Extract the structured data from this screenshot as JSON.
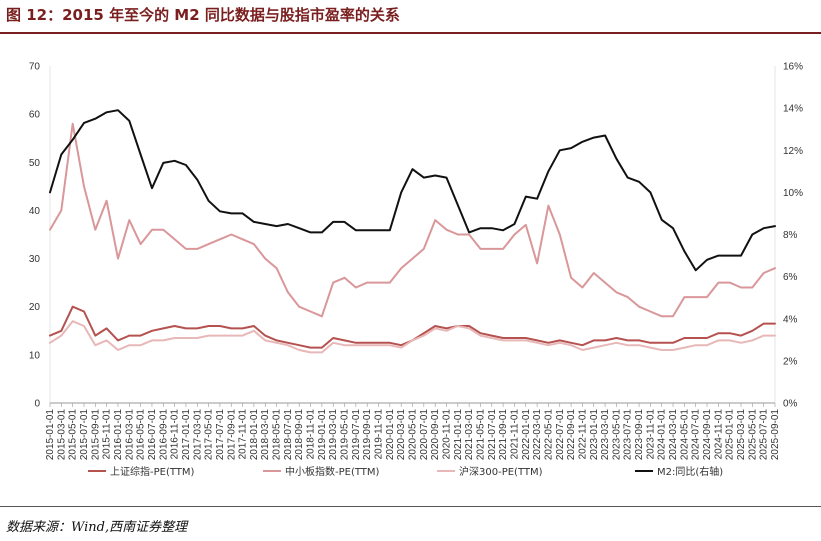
{
  "figure": {
    "title": "图 12：2015 年至今的 M2 同比数据与股指市盈率的关系",
    "source": "数据来源：Wind,西南证券整理"
  },
  "chart_data": {
    "type": "line",
    "x": [
      "2015-01-01",
      "2015-03-01",
      "2015-05-01",
      "2015-07-01",
      "2015-09-01",
      "2015-11-01",
      "2016-01-01",
      "2016-03-01",
      "2016-05-01",
      "2016-07-01",
      "2016-09-01",
      "2016-11-01",
      "2017-01-01",
      "2017-03-01",
      "2017-05-01",
      "2017-07-01",
      "2017-09-01",
      "2017-11-01",
      "2018-01-01",
      "2018-03-01",
      "2018-05-01",
      "2018-07-01",
      "2018-09-01",
      "2018-11-01",
      "2019-01-01",
      "2019-03-01",
      "2019-05-01",
      "2019-07-01",
      "2019-09-01",
      "2019-11-01",
      "2020-01-01",
      "2020-03-01",
      "2020-05-01",
      "2020-07-01",
      "2020-09-01",
      "2020-11-01",
      "2021-01-01",
      "2021-03-01",
      "2021-05-01",
      "2021-07-01",
      "2021-09-01",
      "2021-11-01",
      "2022-01-01",
      "2022-03-01",
      "2022-05-01",
      "2022-07-01",
      "2022-09-01",
      "2022-11-01",
      "2023-01-01",
      "2023-03-01",
      "2023-05-01",
      "2023-07-01",
      "2023-09-01",
      "2023-11-01",
      "2024-01-01",
      "2024-03-01",
      "2024-05-01",
      "2024-07-01",
      "2024-09-01",
      "2024-11-01",
      "2025-01-01",
      "2025-03-01",
      "2025-05-01",
      "2025-07-01",
      "2025-09-01"
    ],
    "y_left_lim": [
      0,
      70
    ],
    "y_left_ticks": [
      0,
      10,
      20,
      30,
      40,
      50,
      60,
      70
    ],
    "y_right_lim": [
      0,
      16
    ],
    "y_right_ticks": [
      "0%",
      "2%",
      "4%",
      "6%",
      "8%",
      "10%",
      "12%",
      "14%",
      "16%"
    ],
    "series": [
      {
        "name": "上证综指-PE(TTM)",
        "axis": "left",
        "color": "#b5514f",
        "values": [
          14,
          15,
          20,
          19,
          14,
          15.5,
          13,
          14,
          14,
          15,
          15.5,
          16,
          15.5,
          15.5,
          16,
          16,
          15.5,
          15.5,
          16,
          14,
          13,
          12.5,
          12,
          11.5,
          11.5,
          13.5,
          13,
          12.5,
          12.5,
          12.5,
          12.5,
          12,
          13,
          14.5,
          16,
          15.5,
          16,
          16,
          14.5,
          14,
          13.5,
          13.5,
          13.5,
          13,
          12.5,
          13,
          12.5,
          12,
          13,
          13,
          13.5,
          13,
          13,
          12.5,
          12.5,
          12.5,
          13.5,
          13.5,
          13.5,
          14.5,
          14.5,
          14,
          15,
          16.5,
          16.5
        ]
      },
      {
        "name": "中小板指数-PE(TTM)",
        "axis": "left",
        "color": "#d9979a",
        "values": [
          36,
          40,
          58,
          45,
          36,
          42,
          30,
          38,
          33,
          36,
          36,
          34,
          32,
          32,
          33,
          34,
          35,
          34,
          33,
          30,
          28,
          23,
          20,
          19,
          18,
          25,
          26,
          24,
          25,
          25,
          25,
          28,
          30,
          32,
          38,
          36,
          35,
          35,
          32,
          32,
          32,
          35,
          37,
          29,
          41,
          35,
          26,
          24,
          27,
          25,
          23,
          22,
          20,
          19,
          18,
          18,
          22,
          22,
          22,
          25,
          25,
          24,
          24,
          27,
          28
        ]
      },
      {
        "name": "沪深300-PE(TTM)",
        "axis": "left",
        "color": "#e8b7b8",
        "values": [
          12.5,
          14,
          17,
          16,
          12,
          13,
          11,
          12,
          12,
          13,
          13,
          13.5,
          13.5,
          13.5,
          14,
          14,
          14,
          14,
          15,
          13,
          12.5,
          12,
          11,
          10.5,
          10.5,
          12.5,
          12,
          12,
          12,
          12,
          12,
          11.5,
          13,
          14,
          15.5,
          15,
          16,
          15.5,
          14,
          13.5,
          13,
          13,
          13,
          12.5,
          12,
          12.5,
          12,
          11,
          11.5,
          12,
          12.5,
          12,
          12,
          11.5,
          11,
          11,
          11.5,
          12,
          12,
          13,
          13,
          12.5,
          13,
          14,
          14
        ]
      },
      {
        "name": "M2:同比(右轴)",
        "axis": "right",
        "color": "#111111",
        "values": [
          10,
          11.8,
          12.5,
          13.3,
          13.5,
          13.8,
          13.9,
          13.4,
          11.8,
          10.2,
          11.4,
          11.5,
          11.3,
          10.6,
          9.6,
          9.1,
          9.0,
          9.0,
          8.6,
          8.5,
          8.4,
          8.5,
          8.3,
          8.1,
          8.1,
          8.6,
          8.6,
          8.2,
          8.2,
          8.2,
          8.2,
          10.0,
          11.1,
          10.7,
          10.8,
          10.7,
          9.4,
          8.1,
          8.3,
          8.3,
          8.2,
          8.5,
          9.8,
          9.7,
          11.0,
          12.0,
          12.1,
          12.4,
          12.6,
          12.7,
          11.6,
          10.7,
          10.5,
          10.0,
          8.7,
          8.3,
          7.2,
          6.3,
          6.8,
          7.0,
          7.0,
          7.0,
          8.0,
          8.3,
          8.4
        ]
      }
    ]
  }
}
